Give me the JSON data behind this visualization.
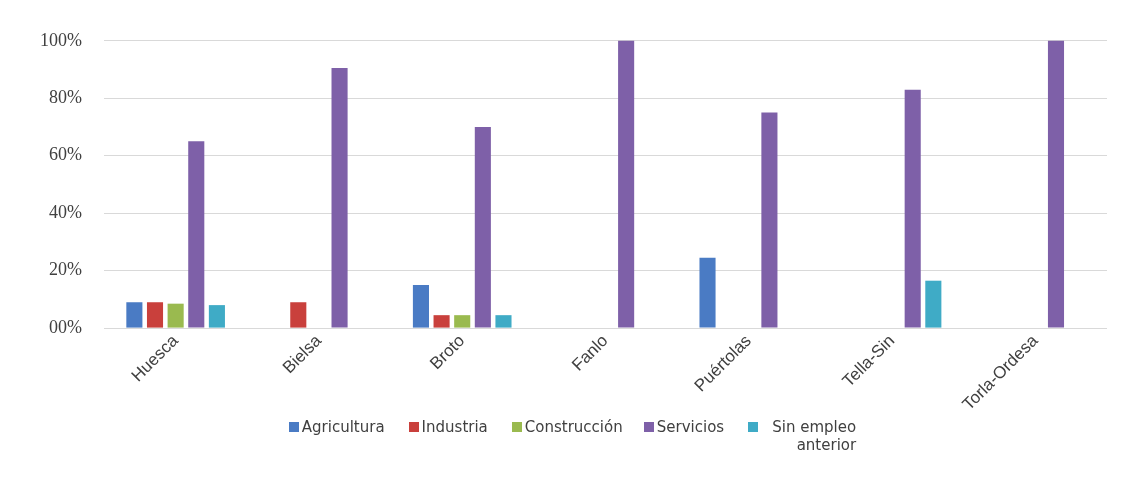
{
  "chart_data": {
    "type": "bar",
    "categories": [
      "Huesca",
      "Bielsa",
      "Broto",
      "Fanlo",
      "Puértolas",
      "Tella-Sin",
      "Torla-Ordesa"
    ],
    "series": [
      {
        "name": "Agricultura",
        "color": "#4a7bc4",
        "values": [
          9,
          null,
          15,
          null,
          24.5,
          null,
          null
        ]
      },
      {
        "name": "Industria",
        "color": "#c9403c",
        "values": [
          9,
          9,
          4.5,
          null,
          null,
          null,
          null
        ]
      },
      {
        "name": "Construcción",
        "color": "#9aba4f",
        "values": [
          8.5,
          null,
          4.5,
          null,
          null,
          null,
          null
        ]
      },
      {
        "name": "Servicios",
        "color": "#7e60a8",
        "values": [
          65,
          90.5,
          70,
          100,
          75,
          83,
          100
        ]
      },
      {
        "name": "Sin empleo anterior",
        "color": "#3fabc6",
        "values": [
          8,
          null,
          4.5,
          null,
          null,
          16.5,
          null
        ]
      }
    ],
    "ylim": [
      0,
      100
    ],
    "yticks": [
      {
        "value": 0,
        "label": "00%"
      },
      {
        "value": 20,
        "label": "20%"
      },
      {
        "value": 40,
        "label": "40%"
      },
      {
        "value": 60,
        "label": "60%"
      },
      {
        "value": 80,
        "label": "80%"
      },
      {
        "value": 100,
        "label": "100%"
      }
    ],
    "grid": "y",
    "legend": "bottom"
  }
}
